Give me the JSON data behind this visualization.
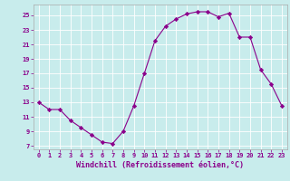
{
  "x": [
    0,
    1,
    2,
    3,
    4,
    5,
    6,
    7,
    8,
    9,
    10,
    11,
    12,
    13,
    14,
    15,
    16,
    17,
    18,
    19,
    20,
    21,
    22,
    23
  ],
  "y": [
    13.0,
    12.0,
    12.0,
    10.5,
    9.5,
    8.5,
    7.5,
    7.3,
    9.0,
    12.5,
    17.0,
    21.5,
    23.5,
    24.5,
    25.2,
    25.5,
    25.5,
    24.8,
    25.3,
    22.0,
    22.0,
    17.5,
    15.5,
    12.5
  ],
  "line_color": "#8B008B",
  "marker": "D",
  "marker_size": 2.2,
  "bg_color": "#c8ecec",
  "grid_color": "#ffffff",
  "xlabel": "Windchill (Refroidissement éolien,°C)",
  "xlabel_fontsize": 6.0,
  "tick_label_color": "#8B008B",
  "xlabel_color": "#8B008B",
  "yticks": [
    7,
    9,
    11,
    13,
    15,
    17,
    19,
    21,
    23,
    25
  ],
  "xticks": [
    0,
    1,
    2,
    3,
    4,
    5,
    6,
    7,
    8,
    9,
    10,
    11,
    12,
    13,
    14,
    15,
    16,
    17,
    18,
    19,
    20,
    21,
    22,
    23
  ],
  "ylim": [
    6.5,
    26.5
  ],
  "xlim": [
    -0.5,
    23.5
  ]
}
